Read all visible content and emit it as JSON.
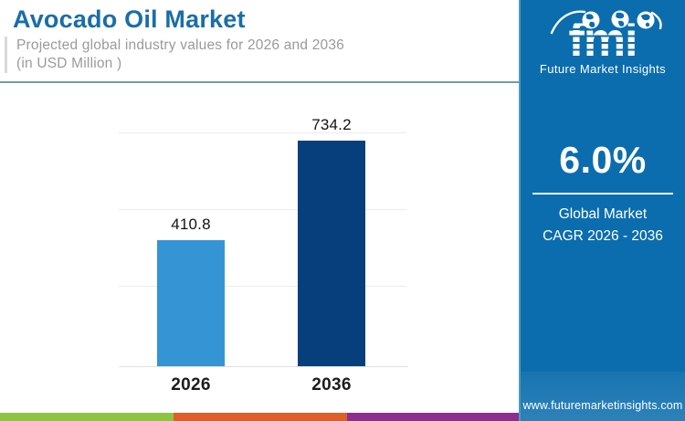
{
  "header": {
    "title": "Avocado Oil Market",
    "subtitle_line1": "Projected global industry values for 2026 and 2036",
    "subtitle_line2": "(in USD Million )"
  },
  "chart_data": {
    "type": "bar",
    "categories": [
      "2026",
      "2036"
    ],
    "values": [
      410.8,
      734.2
    ],
    "title": "Avocado Oil Market",
    "xlabel": "",
    "ylabel": "",
    "ylim": [
      0,
      750
    ],
    "gridline_step": 250,
    "grid": "horizontal",
    "legend": "none",
    "bar_colors": [
      "#3494d4",
      "#063f7c"
    ],
    "value_label_color": "#121212"
  },
  "sidebar": {
    "background_color": "#0b6dad",
    "logo": {
      "text": "fmi",
      "caption": "Future Market Insights",
      "icons": [
        "americas-globe-icon",
        "europe-africa-globe-icon",
        "asia-pacific-globe-icon"
      ]
    },
    "stat": {
      "value": "6.0%",
      "caption_line1": "Global Market",
      "caption_line2": "CAGR 2026 - 2036"
    },
    "website": "www.futuremarketinsights.com"
  },
  "footer": {
    "stripe_colors": [
      "#8ec53f",
      "#e25e29",
      "#8c2f90"
    ]
  }
}
